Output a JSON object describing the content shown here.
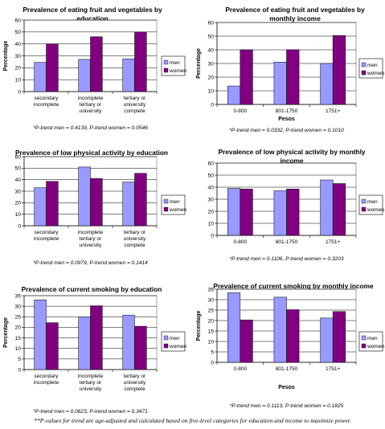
{
  "footnote": "**P-values for trend are age-adjusted and calculated based on five-level categories for education and income to maximize power.",
  "colors": {
    "men": "#9999ff",
    "women": "#800080"
  },
  "legend": {
    "men": "men",
    "women": "women"
  },
  "chart_data": [
    {
      "type": "bar",
      "title": [
        "Prevalence of eating fruit and vegetables by",
        "education"
      ],
      "xlabel": "",
      "ylabel": "Percentage",
      "ylim": [
        0,
        60
      ],
      "ytick_step": 10,
      "categories": [
        [
          "secondary",
          "incomplete"
        ],
        [
          "incomplete",
          "tertiary or",
          "university"
        ],
        [
          "tertiary or",
          "university",
          "complete"
        ]
      ],
      "series": [
        {
          "name": "men",
          "values": [
            24.5,
            27,
            27.5
          ]
        },
        {
          "name": "women",
          "values": [
            40,
            46,
            50
          ]
        }
      ],
      "note": "*P-trend men = 0.4139, P-trend women = 0.0546",
      "legend_position": "right",
      "grid": true
    },
    {
      "type": "bar",
      "title": [
        "Prevalence of eating fruit and vegetables by",
        "monthly income"
      ],
      "xlabel": "Pesos",
      "ylabel": "Percentage",
      "ylim": [
        0,
        60
      ],
      "ytick_step": 10,
      "categories": [
        [
          "0-800"
        ],
        [
          "801-1750"
        ],
        [
          "1751+"
        ]
      ],
      "series": [
        {
          "name": "men",
          "values": [
            13.5,
            31,
            30
          ]
        },
        {
          "name": "women",
          "values": [
            40,
            40,
            50.5
          ]
        }
      ],
      "note": "*P-trend men = 0.0332, P-trend women = 0.1010",
      "legend_position": "right",
      "grid": true
    },
    {
      "type": "bar",
      "title": [
        "Prevalence of low physical activity by education"
      ],
      "xlabel": "",
      "ylabel": "",
      "ylim": [
        0,
        60
      ],
      "ytick_step": 10,
      "categories": [
        [
          "secondary",
          "incomplete"
        ],
        [
          "incomplete",
          "tertiary or",
          "university"
        ],
        [
          "tertiary or",
          "university",
          "complete"
        ]
      ],
      "series": [
        {
          "name": "men",
          "values": [
            33,
            51,
            38
          ]
        },
        {
          "name": "women",
          "values": [
            38.5,
            41,
            45.5
          ]
        }
      ],
      "note": "*P-trend men = 0.0979, P-trend women = 0.1414",
      "legend_position": "right",
      "grid": true
    },
    {
      "type": "bar",
      "title": [
        "Prevalence of low physical activity by monthly",
        "income"
      ],
      "xlabel": "",
      "ylabel": "",
      "ylim": [
        0,
        60
      ],
      "ytick_step": 10,
      "categories": [
        [
          "0-800"
        ],
        [
          "801-1750"
        ],
        [
          "1751+"
        ]
      ],
      "series": [
        {
          "name": "men",
          "values": [
            39,
            37,
            46
          ]
        },
        {
          "name": "women",
          "values": [
            38.5,
            38.5,
            43
          ]
        }
      ],
      "note": "*P-trend men = 0.1106, P-trend women = 0.3203",
      "legend_position": "right",
      "grid": true
    },
    {
      "type": "bar",
      "title": [
        "Prevalence of current smoking by education"
      ],
      "xlabel": "",
      "ylabel": "Percentage",
      "ylim": [
        0,
        35
      ],
      "ytick_step": 5,
      "categories": [
        [
          "secondary",
          "incomplete"
        ],
        [
          "incomplete",
          "tertiary or",
          "university"
        ],
        [
          "tertiary or",
          "university",
          "complete"
        ]
      ],
      "series": [
        {
          "name": "men",
          "values": [
            33,
            25,
            25.8
          ]
        },
        {
          "name": "women",
          "values": [
            22.2,
            30.2,
            20.5
          ]
        }
      ],
      "note": "*P-trend men = 0.0623, P-trend women = 0.3471",
      "legend_position": "right",
      "grid": true
    },
    {
      "type": "bar",
      "title": [
        "Prevalence of current smoking by monthly income"
      ],
      "xlabel": "Pesos",
      "ylabel": "Percentage",
      "ylim": [
        0,
        35
      ],
      "ytick_step": 5,
      "categories": [
        [
          "0-800"
        ],
        [
          "801-1750"
        ],
        [
          "1751+"
        ]
      ],
      "series": [
        {
          "name": "men",
          "values": [
            33.3,
            31.2,
            21.2
          ]
        },
        {
          "name": "women",
          "values": [
            20.3,
            25.2,
            24.3
          ]
        }
      ],
      "note": "*P-trend men = 0.1113, P-trend women = 0.1825",
      "legend_position": "right",
      "grid": true
    }
  ]
}
